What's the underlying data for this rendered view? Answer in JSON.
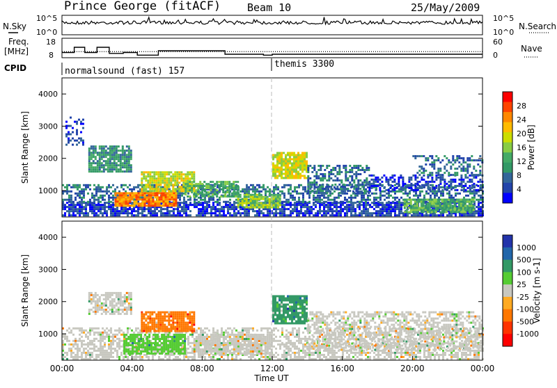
{
  "header": {
    "station": "Prince George (fitACF)",
    "beam": "Beam 10",
    "date": "25/May/2009"
  },
  "noise_panel": {
    "left_label": "N.Sky",
    "right_label": "N.Search",
    "left_ticks": [
      "10^5",
      "10^0"
    ],
    "right_ticks": [
      "10^5",
      "10^0"
    ]
  },
  "freq_panel": {
    "left_label_1": "Freq.",
    "left_label_2": "[MHz]",
    "left_ticks": [
      "18",
      "8"
    ],
    "right_label": "Nave",
    "right_ticks": [
      "60",
      "0"
    ]
  },
  "cpid_panel": {
    "label": "CPID",
    "modes": [
      {
        "name": "normalsound (fast) 157",
        "start": 0
      },
      {
        "name": "themis 3300",
        "start": 12
      }
    ]
  },
  "power_panel": {
    "ylabel": "Slant Range [km]",
    "colorbar_label": "Power [dB]",
    "colorbar_ticks": [
      "28",
      "24",
      "20",
      "16",
      "12",
      "8",
      "4"
    ],
    "colors": [
      "#ff0000",
      "#ff4400",
      "#ff8800",
      "#ffbb00",
      "#ccdd00",
      "#88cc44",
      "#44aa66",
      "#339966",
      "#336699",
      "#2244aa",
      "#0000ff"
    ]
  },
  "velocity_panel": {
    "ylabel": "Slant Range [km]",
    "colorbar_label": "Velocity [m s-1]",
    "colorbar_ticks": [
      "1000",
      "500",
      "100",
      "25",
      "-25",
      "-100",
      "-500",
      "-1000"
    ],
    "colors": [
      "#2233aa",
      "#2266aa",
      "#339966",
      "#55cc33",
      "#c8c8c0",
      "#ffaa22",
      "#ff7700",
      "#ff3300",
      "#ff0000"
    ]
  },
  "chart_data": {
    "type": "heatmap",
    "title": "Prince George (fitACF)",
    "xlabel": "Time UT",
    "x_ticks": [
      "00:00",
      "04:00",
      "08:00",
      "12:00",
      "16:00",
      "20:00",
      "00:00"
    ],
    "xlim_hours": [
      0,
      24
    ],
    "ylabel": "Slant Range [km]",
    "y_ticks": [
      1000,
      2000,
      3000,
      4000
    ],
    "ylim": [
      180,
      4500
    ],
    "grid": false,
    "mode_change_hour": 12,
    "freq_steps": [
      {
        "h0": 0.0,
        "h1": 0.7,
        "f": 11
      },
      {
        "h0": 0.7,
        "h1": 1.3,
        "f": 14
      },
      {
        "h0": 1.3,
        "h1": 2.0,
        "f": 11
      },
      {
        "h0": 2.0,
        "h1": 2.7,
        "f": 14
      },
      {
        "h0": 2.7,
        "h1": 3.5,
        "f": 10.5
      },
      {
        "h0": 3.5,
        "h1": 4.3,
        "f": 11
      },
      {
        "h0": 4.3,
        "h1": 5.5,
        "f": 9.5
      },
      {
        "h0": 5.5,
        "h1": 9.3,
        "f": 12
      },
      {
        "h0": 9.3,
        "h1": 11.5,
        "f": 10
      },
      {
        "h0": 11.5,
        "h1": 12.0,
        "f": 9.5
      },
      {
        "h0": 12.0,
        "h1": 24.0,
        "f": 10
      }
    ],
    "freq_dotted_level": 11.5,
    "power_regions": [
      {
        "t0": 0.0,
        "t1": 24.0,
        "r0": 200,
        "r1": 650,
        "level": 1,
        "density": 0.75
      },
      {
        "t0": 0.0,
        "t1": 24.0,
        "r0": 650,
        "r1": 1200,
        "level": 2,
        "density": 0.55
      },
      {
        "t0": 0.2,
        "t1": 1.2,
        "r0": 2400,
        "r1": 3300,
        "level": 1,
        "density": 0.35
      },
      {
        "t0": 1.5,
        "t1": 4.0,
        "r0": 1600,
        "r1": 2400,
        "level": 3,
        "density": 0.8
      },
      {
        "t0": 4.5,
        "t1": 7.5,
        "r0": 1000,
        "r1": 1600,
        "level": 6,
        "density": 0.85
      },
      {
        "t0": 3.0,
        "t1": 6.5,
        "r0": 500,
        "r1": 950,
        "level": 8,
        "density": 0.9
      },
      {
        "t0": 7.0,
        "t1": 10.0,
        "r0": 800,
        "r1": 1300,
        "level": 4,
        "density": 0.7
      },
      {
        "t0": 10.0,
        "t1": 12.5,
        "r0": 450,
        "r1": 900,
        "level": 5,
        "density": 0.85
      },
      {
        "t0": 12.0,
        "t1": 14.0,
        "r0": 1400,
        "r1": 2200,
        "level": 6,
        "density": 0.85
      },
      {
        "t0": 14.0,
        "t1": 17.5,
        "r0": 900,
        "r1": 1800,
        "level": 2,
        "density": 0.55
      },
      {
        "t0": 17.5,
        "t1": 24.0,
        "r0": 1000,
        "r1": 1500,
        "level": 1,
        "density": 0.5
      },
      {
        "t0": 19.5,
        "t1": 23.5,
        "r0": 350,
        "r1": 750,
        "level": 4,
        "density": 0.85
      },
      {
        "t0": 20.0,
        "t1": 24.0,
        "r0": 1500,
        "r1": 2100,
        "level": 2,
        "density": 0.4
      }
    ],
    "velocity_regions": [
      {
        "t0": 0.0,
        "t1": 24.0,
        "r0": 200,
        "r1": 700,
        "level": 1,
        "density": 0.6
      },
      {
        "t0": 0.0,
        "t1": 24.0,
        "r0": 700,
        "r1": 1200,
        "level": 1,
        "density": 0.5
      },
      {
        "t0": 1.5,
        "t1": 4.0,
        "r0": 1600,
        "r1": 2300,
        "level": 1,
        "density": 0.7
      },
      {
        "t0": 4.5,
        "t1": 7.5,
        "r0": 1100,
        "r1": 1700,
        "level": 3,
        "density": 0.85
      },
      {
        "t0": 3.5,
        "t1": 7.0,
        "r0": 400,
        "r1": 1000,
        "level": 0,
        "density": 0.8
      },
      {
        "t0": 7.5,
        "t1": 12.0,
        "r0": 400,
        "r1": 1000,
        "level": 1,
        "density": 0.75
      },
      {
        "t0": 12.0,
        "t1": 14.0,
        "r0": 1300,
        "r1": 2200,
        "level": 2,
        "density": 0.85
      },
      {
        "t0": 14.0,
        "t1": 24.0,
        "r0": 500,
        "r1": 1700,
        "level": 1,
        "density": 0.55
      }
    ]
  }
}
